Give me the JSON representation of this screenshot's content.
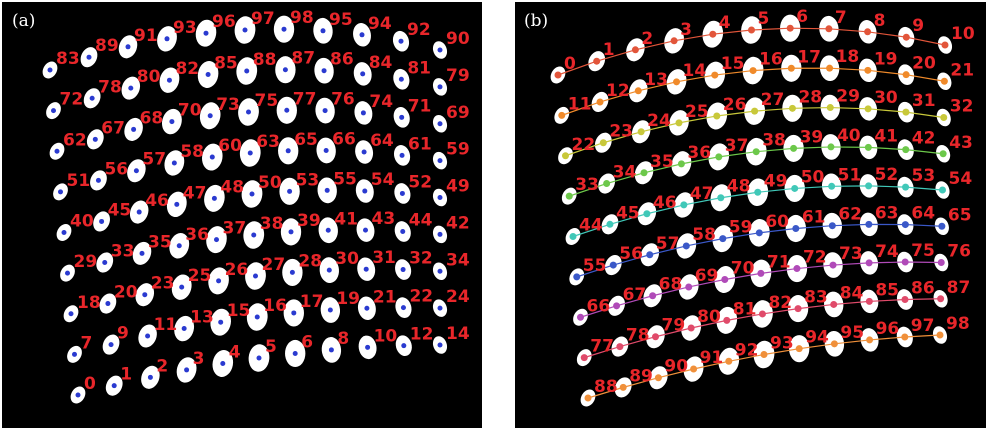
{
  "panel_a": {
    "label": "(a)",
    "rows": [
      [
        83,
        89,
        91,
        93,
        96,
        97,
        98,
        95,
        94,
        92,
        90
      ],
      [
        72,
        78,
        80,
        82,
        85,
        88,
        87,
        86,
        84,
        81,
        79
      ],
      [
        62,
        67,
        68,
        70,
        73,
        75,
        77,
        76,
        74,
        71,
        69
      ],
      [
        51,
        56,
        57,
        58,
        60,
        63,
        65,
        66,
        64,
        61,
        59
      ],
      [
        40,
        45,
        46,
        47,
        48,
        50,
        53,
        55,
        54,
        52,
        49
      ],
      [
        29,
        33,
        35,
        36,
        37,
        38,
        39,
        41,
        43,
        44,
        42
      ],
      [
        18,
        20,
        23,
        25,
        26,
        27,
        28,
        30,
        31,
        32,
        34
      ],
      [
        7,
        9,
        11,
        13,
        15,
        16,
        17,
        19,
        21,
        22,
        24
      ],
      [
        0,
        1,
        2,
        3,
        4,
        5,
        6,
        8,
        10,
        12,
        14
      ]
    ]
  },
  "panel_b": {
    "label": "(b)",
    "rows": [
      [
        0,
        1,
        2,
        3,
        4,
        5,
        6,
        7,
        8,
        9,
        10
      ],
      [
        11,
        12,
        13,
        14,
        15,
        16,
        17,
        18,
        19,
        20,
        21
      ],
      [
        22,
        23,
        24,
        25,
        26,
        27,
        28,
        29,
        30,
        31,
        32
      ],
      [
        33,
        34,
        35,
        36,
        37,
        38,
        39,
        40,
        41,
        42,
        43
      ],
      [
        44,
        45,
        46,
        47,
        48,
        49,
        50,
        51,
        52,
        53,
        54
      ],
      [
        55,
        56,
        57,
        58,
        59,
        60,
        61,
        62,
        63,
        64,
        65
      ],
      [
        66,
        67,
        68,
        69,
        70,
        71,
        72,
        73,
        74,
        75,
        76
      ],
      [
        77,
        78,
        79,
        80,
        81,
        82,
        83,
        84,
        85,
        86,
        87
      ],
      [
        88,
        89,
        90,
        91,
        92,
        93,
        94,
        95,
        96,
        97,
        98
      ]
    ]
  }
}
